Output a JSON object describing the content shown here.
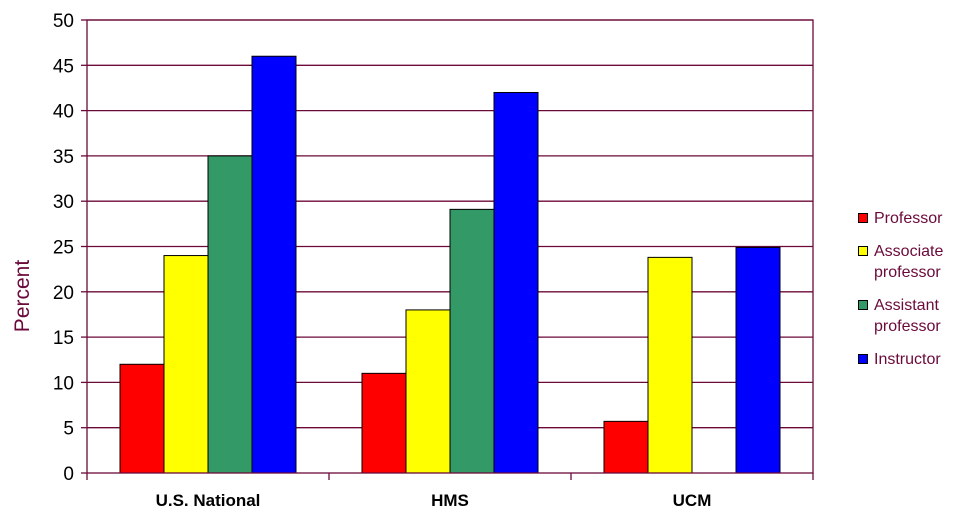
{
  "chart_data": {
    "type": "bar",
    "categories": [
      "U.S. National",
      "HMS",
      "UCM"
    ],
    "series": [
      {
        "name": "Professor",
        "values": [
          12,
          11,
          5.7
        ],
        "color": "#ff0000"
      },
      {
        "name": "Associate professor",
        "values": [
          24,
          18,
          23.8
        ],
        "color": "#ffff00"
      },
      {
        "name": "Assistant professor",
        "values": [
          35,
          29.1,
          null
        ],
        "color": "#339966"
      },
      {
        "name": "Instructor",
        "values": [
          46,
          42,
          24.9
        ],
        "color": "#0000ff"
      }
    ],
    "ylabel": "Percent",
    "ylim": [
      0,
      50
    ],
    "yticks": [
      "0",
      "5",
      "10",
      "15",
      "20",
      "25",
      "30",
      "35",
      "40",
      "45",
      "50"
    ],
    "grid": true,
    "legend_position": "right",
    "gridline_color": "#6b0a3a",
    "text_color": "#6b0a3a"
  }
}
